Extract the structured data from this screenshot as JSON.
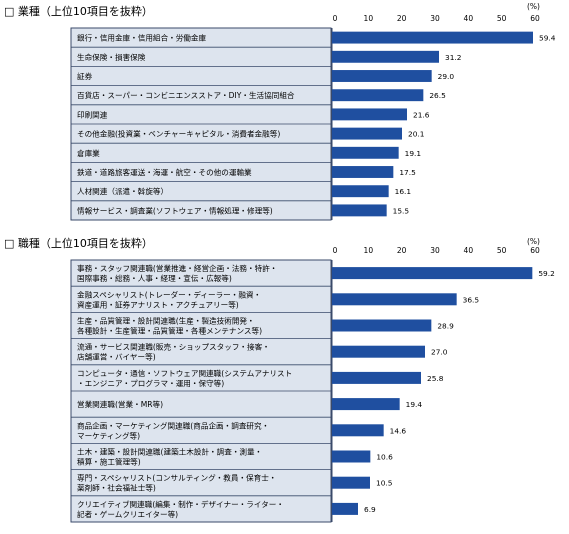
{
  "chart_data": [
    {
      "type": "bar",
      "orientation": "horizontal",
      "title": "□ 業種（上位10項目を抜粋）",
      "unit": "(%)",
      "xlim": [
        0,
        60
      ],
      "ticks": [
        "0",
        "10",
        "20",
        "30",
        "40",
        "50",
        "60"
      ],
      "categories": [
        [
          "銀行・信用金庫・信用組合・労働金庫"
        ],
        [
          "生命保険・損害保険"
        ],
        [
          "証券"
        ],
        [
          "百貨店・スーパー・コンビニエンスストア・DIY・生活協同組合"
        ],
        [
          "印刷関連"
        ],
        [
          "その他金融(投資業・ベンチャーキャピタル・消費者金融等)"
        ],
        [
          "倉庫業"
        ],
        [
          "鉄道・道路旅客運送・海運・航空・その他の運輸業"
        ],
        [
          "人材関連（派遣・斡旋等）"
        ],
        [
          "情報サービス・調査業(ソフトウェア・情報処理・修理等)"
        ]
      ],
      "values": [
        59.4,
        31.2,
        29.0,
        26.5,
        21.6,
        20.1,
        19.1,
        17.5,
        16.1,
        15.5
      ],
      "labels": [
        "59.4",
        "31.2",
        "29.0",
        "26.5",
        "21.6",
        "20.1",
        "19.1",
        "17.5",
        "16.1",
        "15.5"
      ],
      "bar_color": "#1f4fa0",
      "label_panel_color": "#dde4ee"
    },
    {
      "type": "bar",
      "orientation": "horizontal",
      "title": "□ 職種（上位10項目を抜粋）",
      "unit": "(%)",
      "xlim": [
        0,
        60
      ],
      "ticks": [
        "0",
        "10",
        "20",
        "30",
        "40",
        "50",
        "60"
      ],
      "categories": [
        [
          "事務・スタッフ関連職(営業推進・経営企画・法務・特許・",
          "国際事務・総務・人事・経理・宣伝・広報等)"
        ],
        [
          "金融スペシャリスト(トレーダー・ディーラー・融資・",
          "資産運用・証券アナリスト・アクチュアリー等)"
        ],
        [
          "生産・品質管理・設計関連職(生産・製造技術開発・",
          "各種設計・生産管理・品質管理・各種メンテナンス等)"
        ],
        [
          "流通・サービス関連職(販売・ショップスタッフ・接客・",
          "店舗運営・バイヤー等)"
        ],
        [
          "コンピュータ・通信・ソフトウェア関連職(システムアナリスト",
          "・エンジニア・プログラマ・運用・保守等)"
        ],
        [
          "営業関連職(営業・MR等)"
        ],
        [
          "商品企画・マーケティング関連職(商品企画・調査研究・",
          "マーケティング等)"
        ],
        [
          "土木・建築・設計関連職(建築土木設計・調査・測量・",
          "積算・施工管理等)"
        ],
        [
          "専門・スペシャリスト(コンサルティング・教員・保育士・",
          "薬剤師・社会福祉士等)"
        ],
        [
          "クリエイティブ関連職(編集・制作・デザイナー・ライター・",
          "記者・ゲームクリエイター等)"
        ]
      ],
      "values": [
        59.2,
        36.5,
        28.9,
        27.0,
        25.8,
        19.4,
        14.6,
        10.6,
        10.5,
        6.9
      ],
      "labels": [
        "59.2",
        "36.5",
        "28.9",
        "27.0",
        "25.8",
        "19.4",
        "14.6",
        "10.6",
        "10.5",
        "6.9"
      ],
      "bar_color": "#1f4fa0",
      "label_panel_color": "#dde4ee"
    }
  ]
}
